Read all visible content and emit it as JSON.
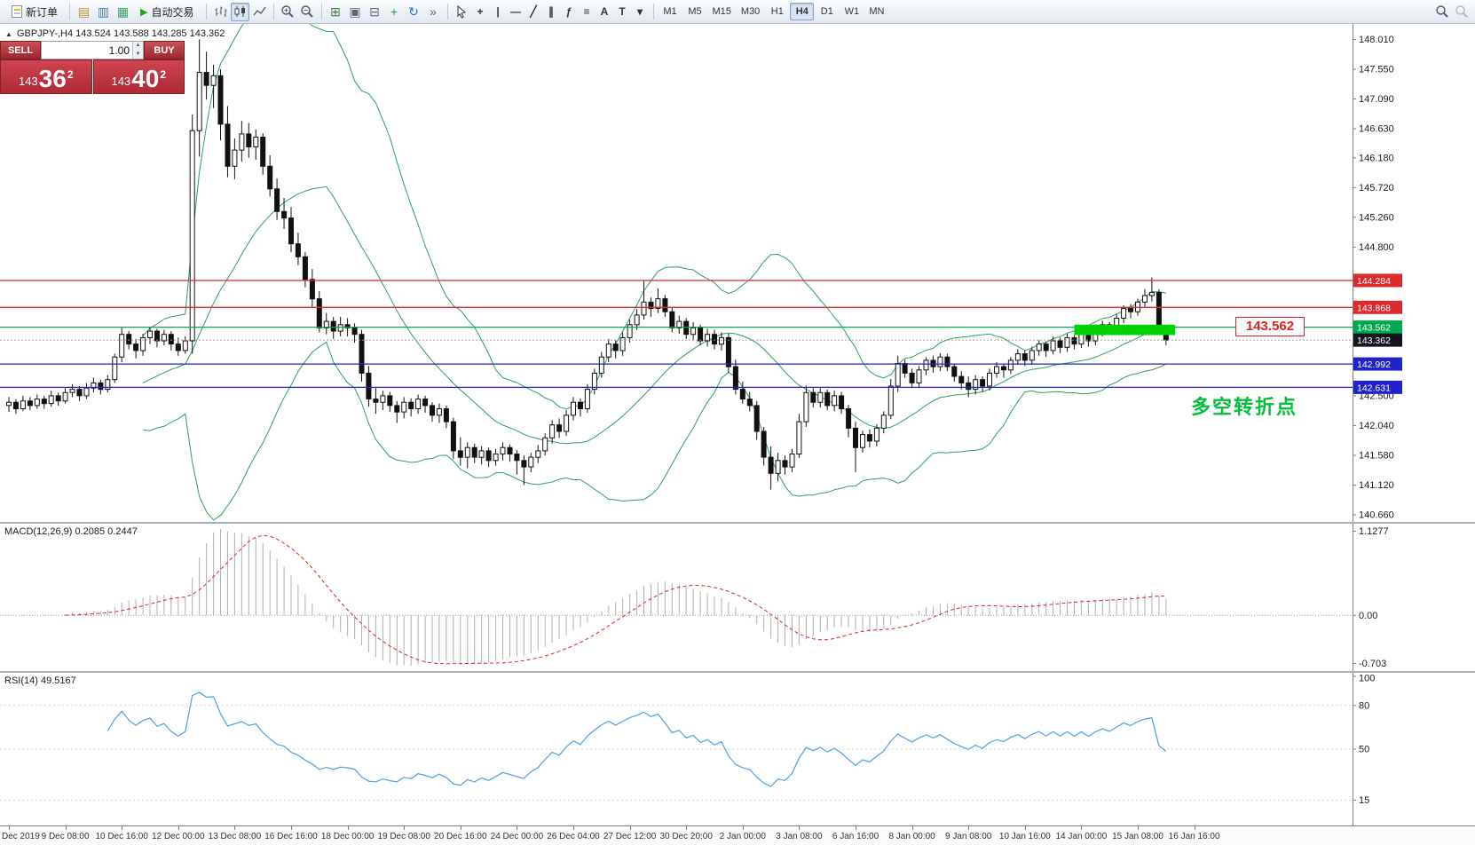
{
  "colors": {
    "bollinger": "#2e9e5e",
    "bull": "#ffffff",
    "bear": "#111111",
    "macd_hist": "#b0b0b0",
    "macd_signal": "#e02020",
    "rsi": "#4d9fe8",
    "current_badge": "#15151d"
  },
  "window": {
    "collapse_icon": "▲",
    "symbol_info": "GBPJPY-,H4  143.524 143.588 143.285 143.362"
  },
  "toolbar": {
    "new_order_label": "新订单",
    "auto_trading_label": "自动交易",
    "left_icons": [
      {
        "name": "market-watch-icon",
        "glyph": "▤",
        "color": "#c2922e"
      },
      {
        "name": "navigator-icon",
        "glyph": "▥",
        "color": "#4a7dbd"
      },
      {
        "name": "terminal-icon",
        "glyph": "▦",
        "color": "#3f9e63"
      }
    ],
    "window_icons": [
      {
        "name": "tile-windows-icon",
        "glyph": "⊞",
        "color": "#3c7d3c"
      },
      {
        "name": "cascade-windows-icon",
        "glyph": "▣",
        "color": "#5b6673"
      },
      {
        "name": "arrange-horizontal-icon",
        "glyph": "⊟",
        "color": "#5b6673"
      },
      {
        "name": "add-indicator-icon",
        "glyph": "+",
        "color": "#1e9e3e"
      },
      {
        "name": "auto-scroll-icon",
        "glyph": "↻",
        "color": "#2a6fc9"
      },
      {
        "name": "chart-shift-icon",
        "glyph": "»",
        "color": "#5b6673"
      }
    ],
    "tool_icons": [
      {
        "name": "crosshair-icon",
        "glyph": "+"
      },
      {
        "name": "vertical-line-icon",
        "glyph": "|"
      },
      {
        "name": "horizontal-line-icon",
        "glyph": "—"
      },
      {
        "name": "trendline-icon",
        "glyph": "╱"
      },
      {
        "name": "channel-icon",
        "glyph": "∥"
      },
      {
        "name": "fibonacci-icon",
        "glyph": "ƒ"
      },
      {
        "name": "shapes-icon",
        "glyph": "≡"
      },
      {
        "name": "text-icon",
        "glyph": "A"
      },
      {
        "name": "label-icon",
        "glyph": "T"
      },
      {
        "name": "arrows-dropdown-icon",
        "glyph": "▾"
      }
    ],
    "timeframes": [
      "M1",
      "M5",
      "M15",
      "M30",
      "H1",
      "H4",
      "D1",
      "W1",
      "MN"
    ],
    "active_timeframe": "H4"
  },
  "trade_panel": {
    "sell_label": "SELL",
    "buy_label": "BUY",
    "volume": "1.00",
    "bid": {
      "prefix": "143",
      "big": "36",
      "sup": "2"
    },
    "ask": {
      "prefix": "143",
      "big": "40",
      "sup": "2"
    }
  },
  "macd_panel": {
    "label": "MACD(12,26,9) 0.2085 0.2447",
    "max_label": "1.1277",
    "zero_label": "0.00",
    "min_label": "-0.703"
  },
  "rsi_panel": {
    "label": "RSI(14) 49.5167",
    "levels": [
      100,
      80,
      50,
      15
    ]
  },
  "chart_data": {
    "type": "candlestick",
    "symbol": "GBPJPY-",
    "timeframe": "H4",
    "last_ohlc": {
      "open": 143.524,
      "high": 143.588,
      "low": 143.285,
      "close": 143.362
    },
    "price_range": [
      140.55,
      148.25
    ],
    "y_ticks": [
      "148.010",
      "147.550",
      "147.090",
      "146.630",
      "146.180",
      "145.720",
      "145.260",
      "144.800",
      "142.500",
      "142.040",
      "141.580",
      "141.120",
      "140.660"
    ],
    "x_labels": [
      "Dec 2019",
      "9 Dec 08:00",
      "10 Dec 16:00",
      "12 Dec 00:00",
      "13 Dec 08:00",
      "16 Dec 16:00",
      "18 Dec 00:00",
      "19 Dec 08:00",
      "20 Dec 16:00",
      "24 Dec 00:00",
      "26 Dec 04:00",
      "27 Dec 12:00",
      "30 Dec 20:00",
      "2 Jan 00:00",
      "3 Jan 08:00",
      "6 Jan 16:00",
      "8 Jan 00:00",
      "9 Jan 08:00",
      "10 Jan 16:00",
      "14 Jan 00:00",
      "15 Jan 08:00",
      "16 Jan 16:00"
    ],
    "levels": [
      {
        "label": "144.284",
        "value": 144.284,
        "color": "#dd2a2a",
        "style": "solid"
      },
      {
        "label": "143.868",
        "value": 143.868,
        "color": "#dd2a2a",
        "style": "solid"
      },
      {
        "label": "143.562",
        "value": 143.562,
        "color": "#00a94f",
        "style": "solid"
      },
      {
        "label": "143.362",
        "value": 143.362,
        "color": "#15151d",
        "style": "current"
      },
      {
        "label": "142.992",
        "value": 142.992,
        "color": "#2222cc",
        "style": "solid"
      },
      {
        "label": "142.631",
        "value": 142.631,
        "color": "#2222cc",
        "style": "solid"
      }
    ],
    "highlight_zone": {
      "bar_start": 151,
      "bar_end": 165.3,
      "price_top": 143.6,
      "price_bottom": 143.44,
      "color": "#00d400"
    },
    "annotations": {
      "price_box_label": "143.562",
      "note_text": "多空转折点"
    },
    "indicators": [
      {
        "name": "Bollinger Bands",
        "period": 20,
        "deviation": 2
      },
      {
        "name": "MACD",
        "params": [
          12,
          26,
          9
        ],
        "values": [
          0.2085,
          0.2447
        ]
      },
      {
        "name": "RSI",
        "period": 14,
        "value": 49.5167
      }
    ],
    "candles": [
      [
        142.35,
        142.48,
        142.25,
        142.4
      ],
      [
        142.4,
        142.45,
        142.22,
        142.3
      ],
      [
        142.3,
        142.5,
        142.26,
        142.42
      ],
      [
        142.42,
        142.48,
        142.28,
        142.35
      ],
      [
        142.35,
        142.52,
        142.3,
        142.45
      ],
      [
        142.45,
        142.5,
        142.3,
        142.38
      ],
      [
        142.38,
        142.58,
        142.33,
        142.5
      ],
      [
        142.5,
        142.55,
        142.35,
        142.42
      ],
      [
        142.42,
        142.62,
        142.38,
        142.55
      ],
      [
        142.55,
        142.68,
        142.48,
        142.6
      ],
      [
        142.6,
        142.65,
        142.42,
        142.5
      ],
      [
        142.5,
        142.7,
        142.45,
        142.62
      ],
      [
        142.62,
        142.78,
        142.55,
        142.7
      ],
      [
        142.7,
        142.75,
        142.52,
        142.6
      ],
      [
        142.6,
        142.82,
        142.55,
        142.75
      ],
      [
        142.75,
        143.15,
        142.7,
        143.1
      ],
      [
        143.1,
        143.55,
        143.02,
        143.45
      ],
      [
        143.45,
        143.5,
        143.22,
        143.3
      ],
      [
        143.3,
        143.38,
        143.08,
        143.2
      ],
      [
        143.2,
        143.46,
        143.12,
        143.4
      ],
      [
        143.4,
        143.56,
        143.3,
        143.5
      ],
      [
        143.5,
        143.54,
        143.25,
        143.35
      ],
      [
        143.35,
        143.52,
        143.28,
        143.45
      ],
      [
        143.45,
        143.5,
        143.2,
        143.3
      ],
      [
        143.3,
        143.4,
        143.12,
        143.2
      ],
      [
        143.2,
        143.42,
        143.15,
        143.35
      ],
      [
        143.35,
        146.85,
        143.15,
        146.6
      ],
      [
        146.6,
        148.01,
        146.2,
        147.5
      ],
      [
        147.5,
        147.82,
        147.08,
        147.3
      ],
      [
        147.3,
        147.62,
        146.95,
        147.45
      ],
      [
        147.45,
        147.55,
        146.45,
        146.7
      ],
      [
        146.7,
        146.98,
        145.88,
        146.05
      ],
      [
        146.05,
        146.48,
        145.85,
        146.3
      ],
      [
        146.3,
        146.75,
        146.12,
        146.55
      ],
      [
        146.55,
        146.72,
        146.18,
        146.35
      ],
      [
        146.35,
        146.62,
        146.15,
        146.5
      ],
      [
        146.5,
        146.56,
        145.92,
        146.05
      ],
      [
        146.05,
        146.22,
        145.58,
        145.7
      ],
      [
        145.7,
        145.86,
        145.22,
        145.35
      ],
      [
        145.35,
        145.56,
        145.08,
        145.25
      ],
      [
        145.25,
        145.42,
        144.72,
        144.85
      ],
      [
        144.85,
        145.02,
        144.52,
        144.65
      ],
      [
        144.65,
        144.72,
        144.18,
        144.3
      ],
      [
        144.3,
        144.46,
        143.88,
        144.0
      ],
      [
        144.0,
        144.12,
        143.48,
        143.55
      ],
      [
        143.55,
        143.78,
        143.45,
        143.65
      ],
      [
        143.65,
        143.72,
        143.38,
        143.5
      ],
      [
        143.5,
        143.72,
        143.42,
        143.6
      ],
      [
        143.6,
        143.7,
        143.42,
        143.55
      ],
      [
        143.55,
        143.62,
        143.32,
        143.45
      ],
      [
        143.45,
        143.52,
        142.72,
        142.85
      ],
      [
        142.85,
        142.96,
        142.33,
        142.45
      ],
      [
        142.45,
        142.62,
        142.22,
        142.4
      ],
      [
        142.4,
        142.58,
        142.28,
        142.5
      ],
      [
        142.5,
        142.56,
        142.25,
        142.35
      ],
      [
        142.35,
        142.42,
        142.08,
        142.25
      ],
      [
        142.25,
        142.48,
        142.15,
        142.4
      ],
      [
        142.4,
        142.46,
        142.18,
        142.3
      ],
      [
        142.3,
        142.52,
        142.22,
        142.45
      ],
      [
        142.45,
        142.5,
        142.24,
        142.35
      ],
      [
        142.35,
        142.4,
        142.1,
        142.2
      ],
      [
        142.2,
        142.38,
        142.08,
        142.3
      ],
      [
        142.3,
        142.35,
        142.0,
        142.1
      ],
      [
        142.1,
        142.16,
        141.52,
        141.65
      ],
      [
        141.65,
        141.86,
        141.42,
        141.55
      ],
      [
        141.55,
        141.78,
        141.38,
        141.7
      ],
      [
        141.7,
        141.76,
        141.46,
        141.55
      ],
      [
        141.55,
        141.72,
        141.44,
        141.65
      ],
      [
        141.65,
        141.7,
        141.4,
        141.5
      ],
      [
        141.5,
        141.68,
        141.42,
        141.6
      ],
      [
        141.6,
        141.78,
        141.5,
        141.7
      ],
      [
        141.7,
        141.75,
        141.48,
        141.6
      ],
      [
        141.6,
        141.66,
        141.28,
        141.5
      ],
      [
        141.5,
        141.58,
        141.12,
        141.4
      ],
      [
        141.4,
        141.62,
        141.32,
        141.55
      ],
      [
        141.55,
        141.74,
        141.46,
        141.65
      ],
      [
        141.65,
        141.92,
        141.58,
        141.85
      ],
      [
        141.85,
        142.12,
        141.76,
        142.05
      ],
      [
        142.05,
        142.15,
        141.85,
        141.95
      ],
      [
        141.95,
        142.28,
        141.88,
        142.2
      ],
      [
        142.2,
        142.48,
        142.12,
        142.4
      ],
      [
        142.4,
        142.46,
        142.18,
        142.3
      ],
      [
        142.3,
        142.68,
        142.24,
        142.6
      ],
      [
        142.6,
        142.92,
        142.52,
        142.85
      ],
      [
        142.85,
        143.18,
        142.78,
        143.1
      ],
      [
        143.1,
        143.38,
        143.02,
        143.3
      ],
      [
        143.3,
        143.36,
        143.08,
        143.2
      ],
      [
        143.2,
        143.48,
        143.12,
        143.4
      ],
      [
        143.4,
        143.68,
        143.32,
        143.6
      ],
      [
        143.6,
        143.84,
        143.52,
        143.75
      ],
      [
        143.75,
        144.28,
        143.68,
        143.95
      ],
      [
        143.95,
        144.02,
        143.72,
        143.85
      ],
      [
        143.85,
        144.16,
        143.78,
        144.0
      ],
      [
        144.0,
        144.06,
        143.72,
        143.8
      ],
      [
        143.8,
        143.86,
        143.48,
        143.55
      ],
      [
        143.55,
        143.74,
        143.46,
        143.65
      ],
      [
        143.65,
        143.7,
        143.38,
        143.45
      ],
      [
        143.45,
        143.64,
        143.36,
        143.55
      ],
      [
        143.55,
        143.6,
        143.28,
        143.35
      ],
      [
        143.35,
        143.54,
        143.26,
        143.45
      ],
      [
        143.45,
        143.52,
        143.22,
        143.3
      ],
      [
        143.3,
        143.48,
        143.2,
        143.4
      ],
      [
        143.4,
        143.46,
        142.86,
        142.95
      ],
      [
        142.95,
        143.06,
        142.52,
        142.6
      ],
      [
        142.6,
        142.72,
        142.38,
        142.45
      ],
      [
        142.45,
        142.56,
        142.26,
        142.35
      ],
      [
        142.35,
        142.42,
        141.82,
        141.95
      ],
      [
        141.95,
        142.02,
        141.42,
        141.55
      ],
      [
        141.55,
        141.72,
        141.05,
        141.3
      ],
      [
        141.3,
        141.62,
        141.18,
        141.5
      ],
      [
        141.5,
        141.58,
        141.28,
        141.4
      ],
      [
        141.4,
        141.68,
        141.32,
        141.6
      ],
      [
        141.6,
        142.22,
        141.54,
        142.1
      ],
      [
        142.1,
        142.66,
        142.02,
        142.55
      ],
      [
        142.55,
        142.62,
        142.32,
        142.4
      ],
      [
        142.4,
        142.62,
        142.32,
        142.55
      ],
      [
        142.55,
        142.6,
        142.28,
        142.35
      ],
      [
        142.35,
        142.58,
        142.26,
        142.5
      ],
      [
        142.5,
        142.56,
        142.22,
        142.3
      ],
      [
        142.3,
        142.36,
        141.86,
        142.0
      ],
      [
        142.0,
        142.1,
        141.32,
        141.7
      ],
      [
        141.7,
        141.96,
        141.62,
        141.9
      ],
      [
        141.9,
        141.98,
        141.7,
        141.8
      ],
      [
        141.8,
        142.06,
        141.72,
        142.0
      ],
      [
        142.0,
        142.26,
        141.92,
        142.2
      ],
      [
        142.2,
        142.76,
        142.14,
        142.65
      ],
      [
        142.65,
        143.12,
        142.56,
        143.0
      ],
      [
        143.0,
        143.06,
        142.78,
        142.85
      ],
      [
        142.85,
        142.92,
        142.62,
        142.7
      ],
      [
        142.7,
        142.96,
        142.62,
        142.9
      ],
      [
        142.9,
        143.1,
        142.82,
        143.05
      ],
      [
        143.05,
        143.12,
        142.86,
        142.95
      ],
      [
        142.95,
        143.16,
        142.88,
        143.1
      ],
      [
        143.1,
        143.15,
        142.88,
        142.95
      ],
      [
        142.95,
        143.0,
        142.72,
        142.8
      ],
      [
        142.8,
        142.88,
        142.6,
        142.7
      ],
      [
        142.7,
        142.8,
        142.48,
        142.6
      ],
      [
        142.6,
        142.82,
        142.52,
        142.75
      ],
      [
        142.75,
        142.8,
        142.56,
        142.65
      ],
      [
        142.65,
        142.92,
        142.58,
        142.85
      ],
      [
        142.85,
        143.02,
        142.78,
        142.95
      ],
      [
        142.95,
        143.0,
        142.78,
        142.9
      ],
      [
        142.9,
        143.1,
        142.84,
        143.05
      ],
      [
        143.05,
        143.22,
        142.98,
        143.15
      ],
      [
        143.15,
        143.2,
        142.96,
        143.05
      ],
      [
        143.05,
        143.26,
        142.98,
        143.2
      ],
      [
        143.2,
        143.36,
        143.12,
        143.3
      ],
      [
        143.3,
        143.34,
        143.1,
        143.2
      ],
      [
        143.2,
        143.42,
        143.14,
        143.35
      ],
      [
        143.35,
        143.4,
        143.16,
        143.25
      ],
      [
        143.25,
        143.46,
        143.18,
        143.4
      ],
      [
        143.4,
        143.44,
        143.22,
        143.3
      ],
      [
        143.3,
        143.52,
        143.24,
        143.45
      ],
      [
        143.45,
        143.5,
        143.26,
        143.35
      ],
      [
        143.35,
        143.56,
        143.28,
        143.5
      ],
      [
        143.5,
        143.66,
        143.42,
        143.6
      ],
      [
        143.6,
        143.64,
        143.44,
        143.55
      ],
      [
        143.55,
        143.76,
        143.48,
        143.7
      ],
      [
        143.7,
        143.9,
        143.62,
        143.85
      ],
      [
        143.85,
        143.92,
        143.7,
        143.8
      ],
      [
        143.8,
        144.0,
        143.74,
        143.95
      ],
      [
        143.95,
        144.15,
        143.88,
        144.05
      ],
      [
        144.05,
        144.33,
        143.96,
        144.1
      ],
      [
        144.1,
        144.15,
        143.45,
        143.52
      ],
      [
        143.524,
        143.588,
        143.285,
        143.362
      ]
    ]
  }
}
